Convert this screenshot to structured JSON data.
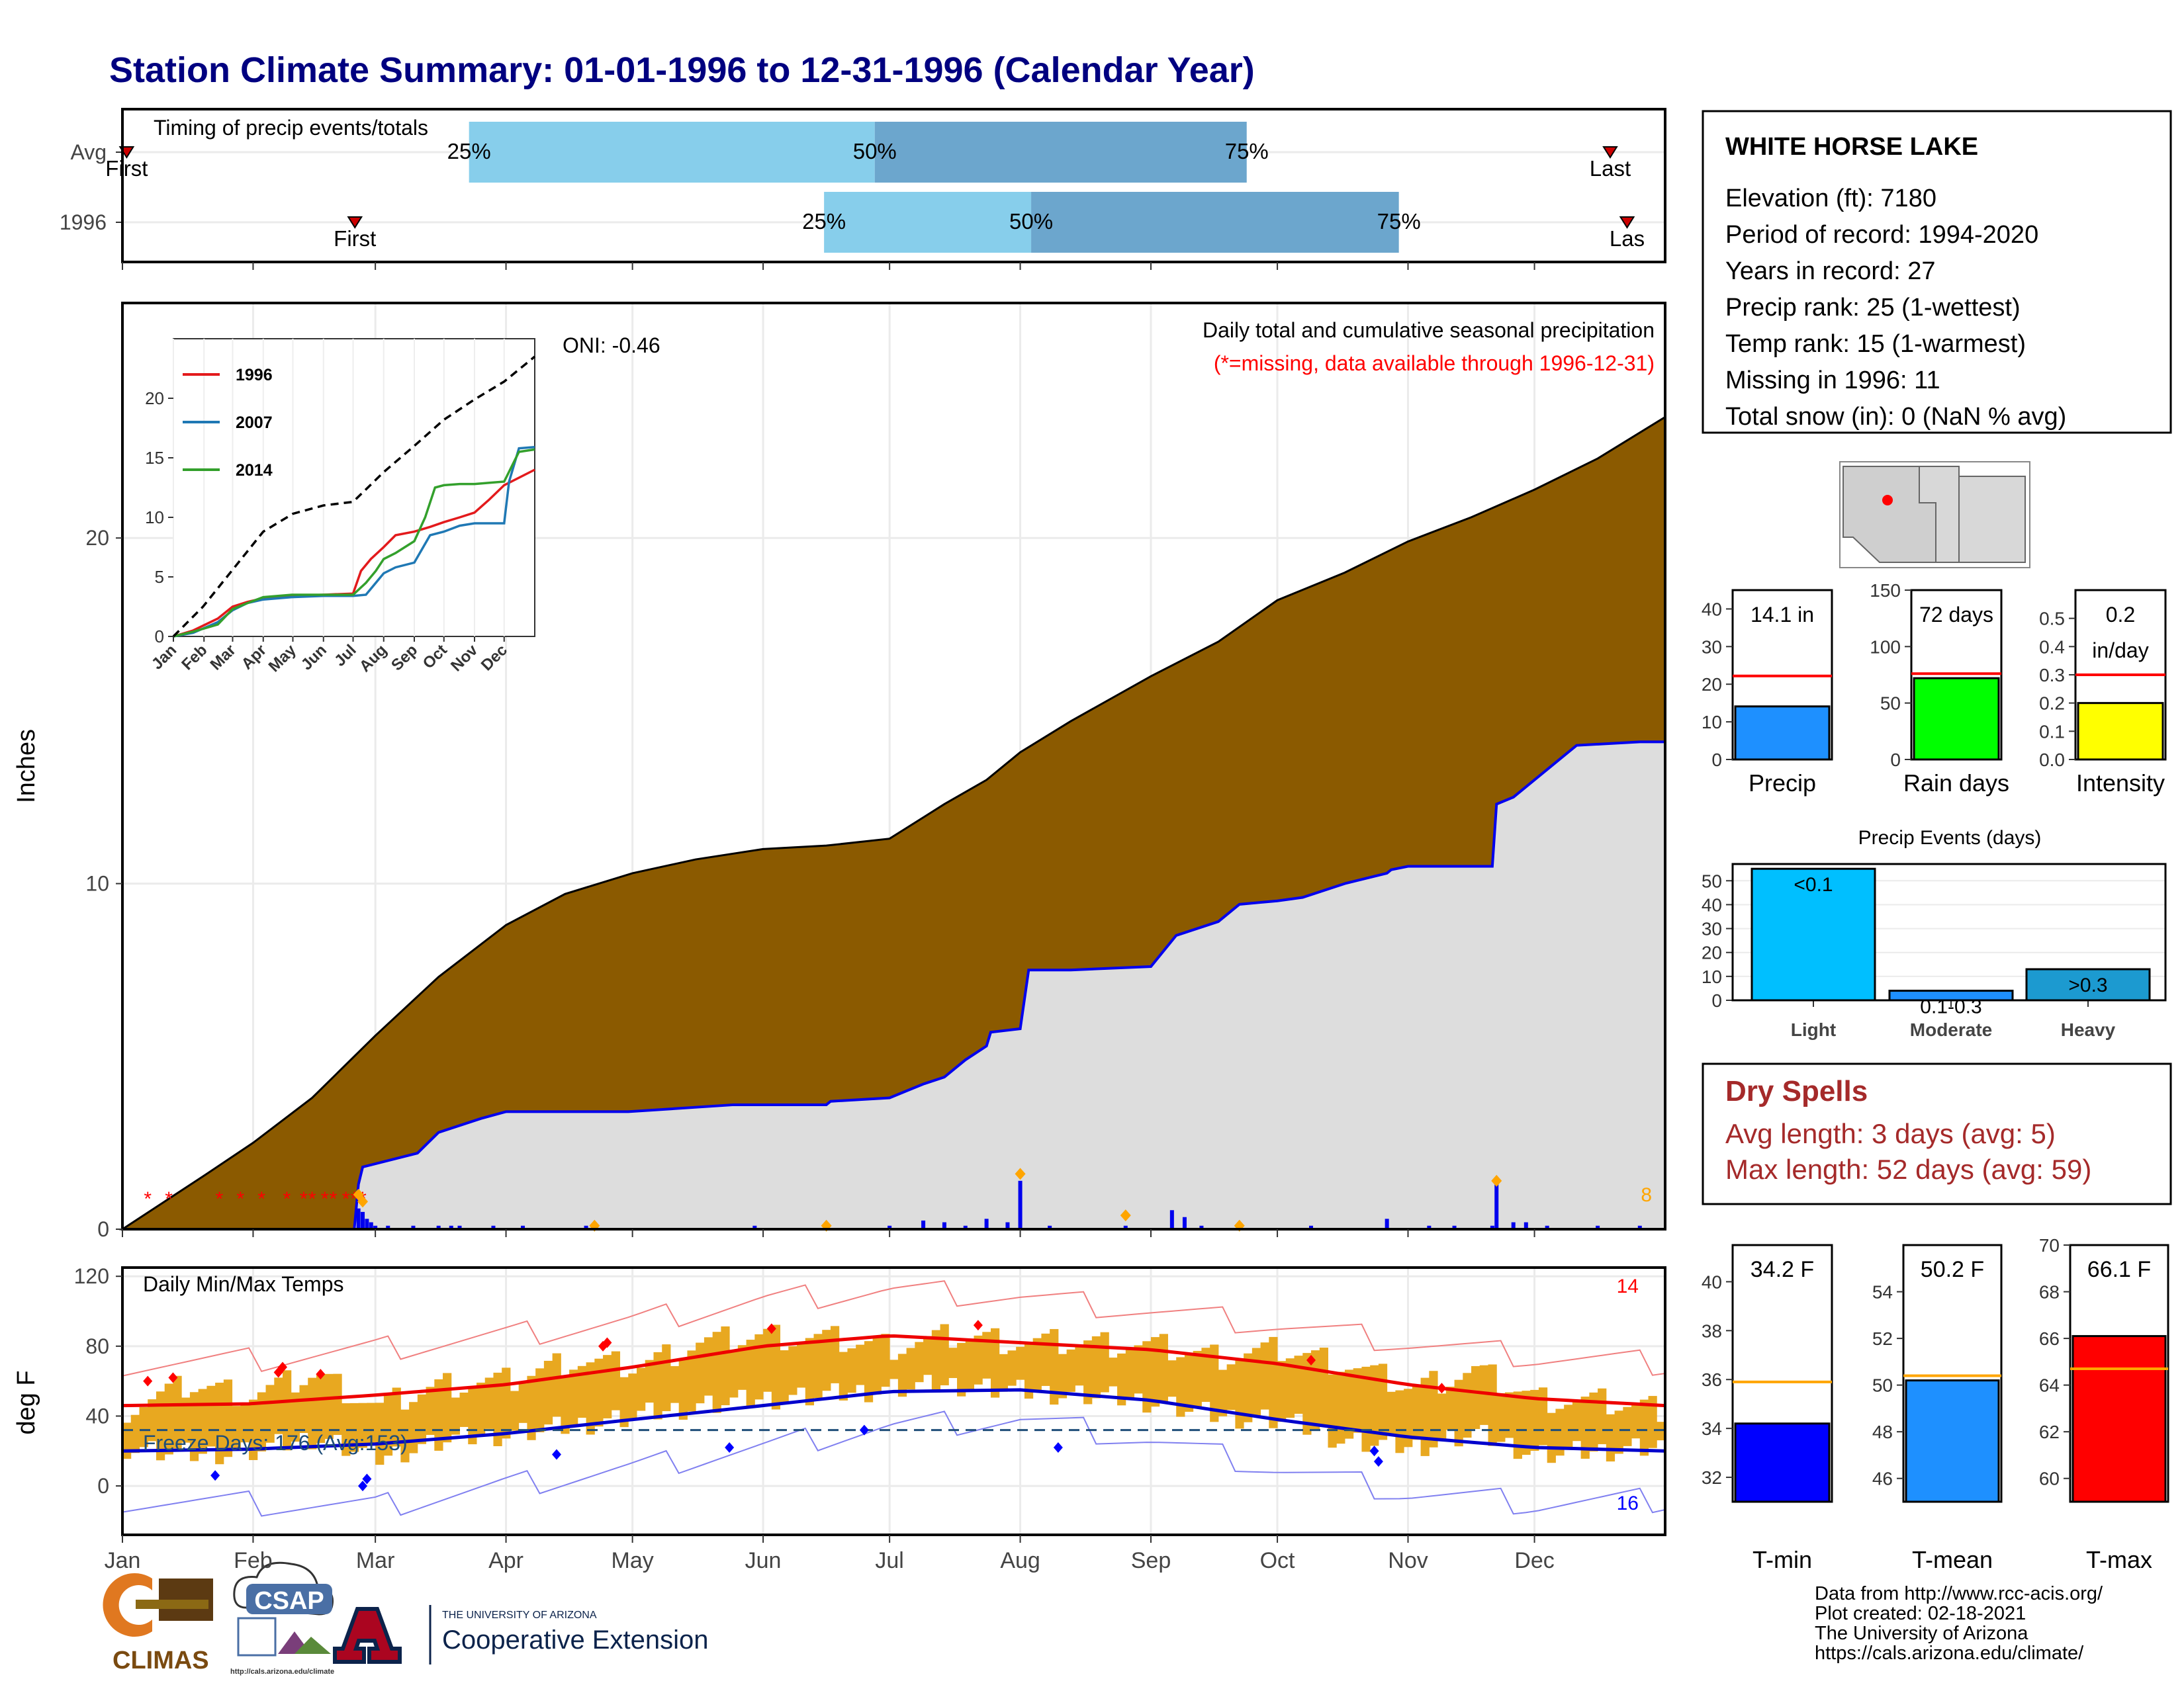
{
  "page": {
    "title": "Station Climate Summary: 01-01-1996 to 12-31-1996 (Calendar Year)",
    "footer_lines": [
      "Data from http://www.rcc-acis.org/",
      "Plot created: 02-18-2021",
      "The University of Arizona",
      "https://cals.arizona.edu/climate/"
    ],
    "logos": {
      "climas": "CLIMAS",
      "csap": "CSAP",
      "csap_url": "http://cals.arizona.edu/climate",
      "ua_top": "THE UNIVERSITY OF ARIZONA",
      "ua_main": "Cooperative Extension"
    }
  },
  "station": {
    "name": "WHITE HORSE LAKE",
    "lines": [
      "Elevation (ft): 7180",
      "Period of record: 1994-2020",
      "Years in record: 27",
      "Precip rank: 25 (1-wettest)",
      "Temp rank: 15 (1-warmest)",
      "Missing in 1996: 11",
      "Total snow (in): 0 (NaN % avg)"
    ]
  },
  "dry_spells": {
    "title": "Dry Spells",
    "avg": "Avg length: 3 days (avg: 5)",
    "max": "Max length: 52 days (avg: 59)"
  },
  "colors": {
    "title": "#000080",
    "precip_fill": "#8B5A00",
    "avg_fill": "#DDDDDD",
    "avg_line": "#0000EE",
    "daily_bar": "#0000EE",
    "temp_band": "#E8A820",
    "tmax_line": "#EE0000",
    "tmin_line": "#0000CC",
    "dry_red": "#A52A2A"
  },
  "chart_data": [
    {
      "type": "bar",
      "name": "timing",
      "title": "Timing of precip events/totals",
      "rows": [
        {
          "label": "Avg",
          "first": 0.1,
          "q25": 8.2,
          "q50": 17.8,
          "q75": 26.6,
          "last": 35.2,
          "first_label": "First",
          "last_label": "Last"
        },
        {
          "label": "1996",
          "first": 5.5,
          "q25": 16.6,
          "q50": 21.5,
          "q75": 30.2,
          "last": 35.6,
          "first_label": "First",
          "last_label": "Las"
        }
      ],
      "xlim": [
        0,
        36.5
      ],
      "pct_labels": [
        "25%",
        "50%",
        "75%"
      ]
    },
    {
      "type": "area",
      "name": "precip",
      "title": "Daily total and cumulative seasonal precipitation",
      "subtitle": "(*=missing, data available through 1996-12-31)",
      "oni": "ONI: -0.46",
      "ylabel": "Inches",
      "ylim": [
        0,
        26.8
      ],
      "yticks": [
        0,
        10,
        20
      ],
      "xlim": [
        0,
        366
      ],
      "month_starts": [
        0,
        31,
        60,
        91,
        121,
        152,
        182,
        213,
        244,
        274,
        305,
        335
      ],
      "month_labels": [
        "Jan",
        "Feb",
        "Mar",
        "Apr",
        "May",
        "Jun",
        "Jul",
        "Aug",
        "Sep",
        "Oct",
        "Nov",
        "Dec"
      ],
      "avg_cumulative": {
        "x": [
          0,
          10,
          20,
          31,
          45,
          60,
          75,
          91,
          105,
          121,
          136,
          152,
          167,
          182,
          195,
          205,
          213,
          225,
          244,
          260,
          274,
          290,
          305,
          320,
          335,
          350,
          366
        ],
        "y": [
          0,
          0.8,
          1.6,
          2.5,
          3.8,
          5.6,
          7.3,
          8.8,
          9.7,
          10.3,
          10.7,
          11.0,
          11.1,
          11.3,
          12.3,
          13.0,
          13.8,
          14.7,
          16.0,
          17.0,
          18.2,
          19.0,
          19.9,
          20.6,
          21.4,
          22.3,
          23.5
        ]
      },
      "year_cumulative": {
        "x": [
          0,
          55,
          56,
          57,
          70,
          75,
          85,
          91,
          120,
          145,
          167,
          168,
          182,
          190,
          195,
          200,
          205,
          206,
          213,
          215,
          225,
          244,
          250,
          260,
          265,
          274,
          280,
          290,
          300,
          301,
          305,
          325,
          326,
          330,
          345,
          360,
          366
        ],
        "y": [
          0,
          0,
          1.3,
          1.8,
          2.2,
          2.8,
          3.2,
          3.4,
          3.4,
          3.6,
          3.6,
          3.7,
          3.8,
          4.2,
          4.4,
          4.9,
          5.3,
          5.7,
          5.8,
          7.5,
          7.5,
          7.6,
          8.5,
          8.9,
          9.4,
          9.5,
          9.6,
          10.0,
          10.3,
          10.4,
          10.5,
          10.5,
          12.3,
          12.5,
          14.0,
          14.1,
          14.1
        ]
      },
      "daily_bars": [
        [
          56,
          0.6
        ],
        [
          57,
          0.5
        ],
        [
          58,
          0.3
        ],
        [
          59,
          0.2
        ],
        [
          60,
          0.1
        ],
        [
          63,
          0.1
        ],
        [
          69,
          0.1
        ],
        [
          75,
          0.1
        ],
        [
          78,
          0.1
        ],
        [
          80,
          0.1
        ],
        [
          88,
          0.1
        ],
        [
          95,
          0.1
        ],
        [
          110,
          0.1
        ],
        [
          150,
          0.1
        ],
        [
          182,
          0.1
        ],
        [
          190,
          0.25
        ],
        [
          195,
          0.2
        ],
        [
          200,
          0.1
        ],
        [
          205,
          0.3
        ],
        [
          210,
          0.2
        ],
        [
          213,
          1.4
        ],
        [
          220,
          0.1
        ],
        [
          238,
          0.1
        ],
        [
          249,
          0.55
        ],
        [
          252,
          0.35
        ],
        [
          256,
          0.1
        ],
        [
          265,
          0.1
        ],
        [
          282,
          0.1
        ],
        [
          300,
          0.3
        ],
        [
          310,
          0.1
        ],
        [
          316,
          0.1
        ],
        [
          325,
          0.1
        ],
        [
          326,
          1.3
        ],
        [
          330,
          0.2
        ],
        [
          333,
          0.2
        ],
        [
          338,
          0.1
        ],
        [
          350,
          0.1
        ],
        [
          360,
          0.1
        ]
      ],
      "missing_days": [
        6,
        11,
        23,
        28,
        33,
        39,
        43,
        45,
        48,
        50,
        53,
        55,
        57
      ],
      "orange_markers": [
        [
          56,
          1.0
        ],
        [
          57,
          0.8
        ],
        [
          112,
          0.1
        ],
        [
          167,
          0.1
        ],
        [
          213,
          1.6
        ],
        [
          238,
          0.4
        ],
        [
          265,
          0.1
        ],
        [
          326,
          1.4
        ]
      ],
      "missing_count": "8",
      "inset": {
        "ylim": [
          0,
          25
        ],
        "yticks": [
          0,
          5,
          10,
          15,
          20
        ],
        "xlabels": [
          "Jan",
          "Feb",
          "Mar",
          "Apr",
          "May",
          "Jun",
          "Jul",
          "Aug",
          "Sep",
          "Oct",
          "Nov",
          "Dec"
        ],
        "series": [
          {
            "name": "1996",
            "color": "#E31A1C",
            "x": [
              0,
              20,
              45,
              60,
              75,
              91,
              120,
              152,
              182,
              190,
              200,
              213,
              225,
              244,
              260,
              274,
              290,
              305,
              320,
              335,
              366
            ],
            "y": [
              0,
              0.5,
              1.5,
              2.5,
              2.9,
              3.2,
              3.4,
              3.5,
              3.6,
              5.5,
              6.5,
              7.5,
              8.5,
              8.8,
              9.2,
              9.6,
              10.0,
              10.4,
              11.5,
              12.7,
              14.0
            ]
          },
          {
            "name": "2007",
            "color": "#1F78B4",
            "x": [
              0,
              20,
              45,
              60,
              75,
              91,
              120,
              152,
              182,
              195,
              205,
              213,
              225,
              244,
              260,
              274,
              290,
              305,
              320,
              335,
              340,
              350,
              366
            ],
            "y": [
              0,
              0.3,
              1.2,
              2.2,
              2.8,
              3.1,
              3.3,
              3.4,
              3.4,
              3.5,
              4.5,
              5.3,
              5.8,
              6.2,
              8.5,
              8.8,
              9.3,
              9.5,
              9.5,
              9.5,
              13.0,
              15.8,
              15.9
            ]
          },
          {
            "name": "2014",
            "color": "#33A02C",
            "x": [
              0,
              20,
              45,
              60,
              75,
              91,
              120,
              152,
              182,
              195,
              205,
              213,
              225,
              244,
              255,
              265,
              274,
              290,
              305,
              320,
              335,
              350,
              366
            ],
            "y": [
              0,
              0.4,
              1.0,
              2.3,
              2.8,
              3.3,
              3.5,
              3.5,
              3.5,
              4.5,
              5.5,
              6.5,
              7.0,
              8.0,
              10.0,
              12.5,
              12.7,
              12.8,
              12.8,
              12.9,
              13.0,
              15.5,
              15.7
            ]
          }
        ],
        "avg_line": {
          "x": [
            0,
            30,
            60,
            91,
            121,
            152,
            182,
            213,
            244,
            274,
            305,
            335,
            366
          ],
          "y": [
            0,
            2.5,
            5.6,
            8.8,
            10.3,
            11.0,
            11.3,
            13.8,
            16.0,
            18.2,
            19.9,
            21.4,
            23.5
          ]
        }
      }
    },
    {
      "type": "line",
      "name": "temps",
      "title": "Daily Min/Max Temps",
      "ylabel": "deg F",
      "ylim": [
        -28,
        125
      ],
      "yticks": [
        0,
        40,
        80,
        120
      ],
      "freeze_label": "Freeze Days: 176 (Avg:153)",
      "freeze_line": 32,
      "tmax_count": "14",
      "tmin_count": "16",
      "avg_tmax": {
        "x": [
          0,
          30,
          60,
          91,
          121,
          152,
          182,
          213,
          244,
          274,
          305,
          335,
          366
        ],
        "y": [
          46,
          47,
          52,
          58,
          68,
          80,
          86,
          82,
          78,
          70,
          58,
          50,
          46
        ]
      },
      "avg_tmin": {
        "x": [
          0,
          30,
          60,
          91,
          121,
          152,
          182,
          213,
          244,
          274,
          305,
          335,
          366
        ],
        "y": [
          20,
          21,
          24,
          30,
          38,
          46,
          54,
          55,
          49,
          38,
          28,
          22,
          20
        ]
      },
      "record_max": {
        "x": [
          0,
          30,
          60,
          91,
          121,
          152,
          182,
          213,
          244,
          274,
          305,
          335,
          366
        ],
        "y": [
          70,
          72,
          78,
          86,
          94,
          106,
          112,
          108,
          100,
          92,
          82,
          74,
          70
        ]
      },
      "record_min": {
        "x": [
          0,
          30,
          60,
          91,
          121,
          152,
          182,
          213,
          244,
          274,
          305,
          335,
          366
        ],
        "y": [
          -8,
          -10,
          -12,
          0,
          10,
          22,
          34,
          38,
          26,
          10,
          -4,
          -10,
          -8
        ]
      },
      "daily_tmax": {
        "x": [
          0,
          15,
          30,
          45,
          60,
          75,
          91,
          105,
          121,
          136,
          152,
          167,
          182,
          197,
          213,
          228,
          244,
          259,
          274,
          289,
          305,
          320,
          335,
          350,
          366
        ],
        "y": [
          44,
          58,
          52,
          64,
          45,
          58,
          60,
          72,
          68,
          82,
          86,
          84,
          80,
          86,
          82,
          82,
          80,
          74,
          78,
          70,
          56,
          66,
          50,
          48,
          44
        ]
      },
      "daily_tmin": {
        "x": [
          0,
          15,
          30,
          45,
          60,
          75,
          91,
          105,
          121,
          136,
          152,
          167,
          182,
          197,
          213,
          228,
          244,
          259,
          274,
          289,
          305,
          320,
          335,
          350,
          366
        ],
        "y": [
          22,
          18,
          20,
          28,
          16,
          26,
          30,
          34,
          40,
          46,
          50,
          52,
          56,
          58,
          54,
          52,
          48,
          40,
          38,
          26,
          22,
          30,
          18,
          20,
          24
        ]
      },
      "red_diamonds": [
        [
          6,
          60
        ],
        [
          12,
          62
        ],
        [
          37,
          65
        ],
        [
          38,
          68
        ],
        [
          47,
          64
        ],
        [
          114,
          80
        ],
        [
          115,
          82
        ],
        [
          154,
          90
        ],
        [
          203,
          92
        ],
        [
          282,
          72
        ],
        [
          313,
          56
        ]
      ],
      "blue_diamonds": [
        [
          22,
          6
        ],
        [
          57,
          0
        ],
        [
          58,
          4
        ],
        [
          103,
          18
        ],
        [
          144,
          22
        ],
        [
          176,
          32
        ],
        [
          222,
          22
        ],
        [
          297,
          20
        ],
        [
          298,
          14
        ]
      ]
    },
    {
      "type": "bar",
      "name": "precip_summary",
      "panels": [
        {
          "label": "Precip",
          "value": 14.1,
          "avg": 22.2,
          "display": "14.1 in",
          "ylim": [
            0,
            45
          ],
          "yticks": [
            0,
            10,
            20,
            30,
            40
          ],
          "color": "#1E90FF"
        },
        {
          "label": "Rain days",
          "value": 72,
          "avg": 76,
          "display": "72 days",
          "ylim": [
            0,
            150
          ],
          "yticks": [
            0,
            50,
            100,
            150
          ],
          "color": "#00FF00"
        },
        {
          "label": "Intensity",
          "value": 0.2,
          "avg": 0.3,
          "display": "0.2 in/day",
          "ylim": [
            0,
            0.6
          ],
          "yticks": [
            0.0,
            0.1,
            0.2,
            0.3,
            0.4,
            0.5
          ],
          "color": "#FFFF00"
        }
      ]
    },
    {
      "type": "bar",
      "name": "precip_events",
      "title": "Precip Events (days)",
      "categories": [
        "Light",
        "Moderate",
        "Heavy"
      ],
      "values": [
        55,
        4,
        13
      ],
      "labels": [
        "<0.1",
        "0.1-0.3",
        ">0.3"
      ],
      "colors": [
        "#00BFFF",
        "#1E90FF",
        "#1C9AD0"
      ],
      "ylim": [
        0,
        57
      ],
      "yticks": [
        0,
        10,
        20,
        30,
        40,
        50
      ]
    },
    {
      "type": "bar",
      "name": "temp_summary",
      "panels": [
        {
          "label": "T-min",
          "value": 34.2,
          "avg": 35.9,
          "display": "34.2 F",
          "ylim": [
            31,
            41.5
          ],
          "yticks": [
            32,
            34,
            36,
            38,
            40
          ],
          "color": "#0000FF"
        },
        {
          "label": "T-mean",
          "value": 50.2,
          "avg": 50.4,
          "display": "50.2 F",
          "ylim": [
            45,
            56
          ],
          "yticks": [
            46,
            48,
            50,
            52,
            54
          ],
          "color": "#1E90FF"
        },
        {
          "label": "T-max",
          "value": 66.1,
          "avg": 64.7,
          "display": "66.1 F",
          "ylim": [
            59,
            70
          ],
          "yticks": [
            60,
            62,
            64,
            66,
            68,
            70
          ],
          "color": "#FF0000"
        }
      ]
    }
  ]
}
